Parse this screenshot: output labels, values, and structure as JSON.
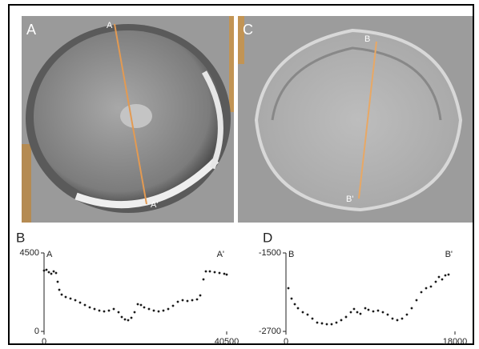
{
  "images": [
    {
      "label": "A",
      "line_start": "A",
      "line_end": "A'"
    },
    {
      "label": "C",
      "line_start": "B",
      "line_end": "B'"
    }
  ],
  "chart_data": [
    {
      "type": "scatter",
      "panel": "B",
      "start_label": "A",
      "end_label": "A'",
      "x": [
        0,
        533,
        1066,
        1599,
        2132,
        2664,
        3020,
        3375,
        3908,
        4796,
        5862,
        6927,
        7993,
        9059,
        10125,
        11191,
        12256,
        13322,
        14388,
        15454,
        16520,
        17231,
        17941,
        18651,
        19362,
        20072,
        20783,
        21493,
        22204,
        23270,
        24336,
        25401,
        26467,
        27533,
        28599,
        29665,
        30730,
        31796,
        32862,
        33928,
        34638,
        35349,
        35882,
        36770,
        37836,
        38901,
        39967,
        40500
      ],
      "values": [
        3490,
        3536,
        3398,
        3306,
        3444,
        3352,
        2847,
        2388,
        2112,
        1974,
        1883,
        1791,
        1653,
        1515,
        1378,
        1286,
        1194,
        1148,
        1194,
        1286,
        1102,
        827,
        689,
        643,
        781,
        1102,
        1561,
        1515,
        1378,
        1286,
        1194,
        1148,
        1194,
        1286,
        1469,
        1699,
        1791,
        1745,
        1791,
        1837,
        2066,
        2985,
        3444,
        3444,
        3398,
        3352,
        3306,
        3260
      ],
      "color": "#1a1a1a",
      "xlim": [
        0,
        40500
      ],
      "ylim": [
        0,
        4500
      ],
      "xticks": [
        0,
        40500
      ],
      "yticks": [
        0,
        4500
      ]
    },
    {
      "type": "scatter",
      "panel": "D",
      "start_label": "B",
      "end_label": "B'",
      "x": [
        256,
        597,
        939,
        1280,
        1791,
        2303,
        2815,
        3327,
        3839,
        4350,
        4862,
        5374,
        5886,
        6398,
        6909,
        7251,
        7592,
        7933,
        8445,
        8786,
        9298,
        9810,
        10321,
        10833,
        11345,
        11857,
        12369,
        12880,
        13392,
        13904,
        14416,
        14928,
        15439,
        15951,
        16292,
        16634,
        16975,
        17316
      ],
      "values": [
        -2039,
        -2198,
        -2284,
        -2345,
        -2406,
        -2443,
        -2504,
        -2565,
        -2577,
        -2590,
        -2590,
        -2565,
        -2528,
        -2479,
        -2406,
        -2357,
        -2406,
        -2431,
        -2345,
        -2369,
        -2394,
        -2382,
        -2406,
        -2443,
        -2504,
        -2528,
        -2504,
        -2443,
        -2345,
        -2222,
        -2100,
        -2039,
        -2014,
        -1941,
        -1867,
        -1904,
        -1843,
        -1831
      ],
      "color": "#1a1a1a",
      "xlim": [
        0,
        18000
      ],
      "ylim": [
        -2700,
        -1500
      ],
      "xticks": [
        0,
        18000
      ],
      "yticks": [
        -2700,
        -1500
      ]
    }
  ]
}
